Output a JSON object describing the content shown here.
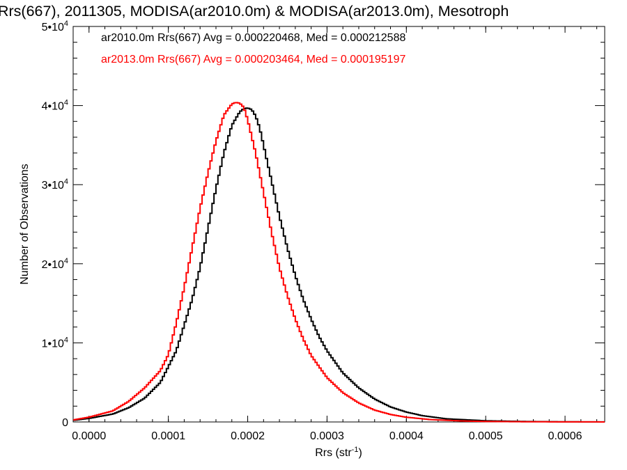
{
  "chart_data": {
    "type": "line",
    "step": true,
    "title": "Rrs(667), 2011305, MODISA(ar2010.0m) & MODISA(ar2013.0m), Mesotroph",
    "xlabel": "Rrs (str",
    "xlabel_sup": "-1",
    "xlabel_close": ")",
    "ylabel": "Number of Observations",
    "xlim": [
      -2e-05,
      0.00065
    ],
    "ylim": [
      0,
      50000
    ],
    "xticks": [
      {
        "v": 0.0,
        "label": "0.0000"
      },
      {
        "v": 0.0001,
        "label": "0.0001"
      },
      {
        "v": 0.0002,
        "label": "0.0002"
      },
      {
        "v": 0.0003,
        "label": "0.0003"
      },
      {
        "v": 0.0004,
        "label": "0.0004"
      },
      {
        "v": 0.0005,
        "label": "0.0005"
      },
      {
        "v": 0.0006,
        "label": "0.0006"
      }
    ],
    "yticks": [
      {
        "v": 0,
        "base": "0",
        "exp": ""
      },
      {
        "v": 10000,
        "base": "1•10",
        "exp": "4"
      },
      {
        "v": 20000,
        "base": "2•10",
        "exp": "4"
      },
      {
        "v": 30000,
        "base": "3•10",
        "exp": "4"
      },
      {
        "v": 40000,
        "base": "4•10",
        "exp": "4"
      },
      {
        "v": 50000,
        "base": "5•10",
        "exp": "4"
      }
    ],
    "grid": false,
    "legend_position": "top-left",
    "annotations": [
      {
        "text": "ar2010.0m Rrs(667) Avg = 0.000220468, Med = 0.000212588",
        "color": "#000000"
      },
      {
        "text": "ar2013.0m Rrs(667) Avg = 0.000203464, Med = 0.000195197",
        "color": "#ff0000"
      }
    ],
    "series": [
      {
        "color": "#000000",
        "x": [
          -2e-05,
          0.0,
          3e-05,
          5e-05,
          7e-05,
          9e-05,
          0.00011,
          0.00013,
          0.00014,
          0.00015,
          0.00016,
          0.00017,
          0.00018,
          0.00019,
          0.000195,
          0.0002,
          0.000205,
          0.00021,
          0.000215,
          0.00022,
          0.00023,
          0.00024,
          0.00025,
          0.00026,
          0.00027,
          0.00028,
          0.00029,
          0.0003,
          0.00032,
          0.00034,
          0.00036,
          0.00038,
          0.0004,
          0.00042,
          0.00045,
          0.0005,
          0.00055,
          0.0006,
          0.00065
        ],
        "y": [
          200,
          450,
          1000,
          1800,
          3000,
          5000,
          9000,
          15500,
          19500,
          24500,
          29500,
          34000,
          37500,
          39200,
          39600,
          39700,
          39500,
          38700,
          37200,
          35000,
          30500,
          26000,
          22000,
          18500,
          15500,
          13000,
          10800,
          9000,
          6200,
          4300,
          2900,
          1900,
          1250,
          800,
          400,
          150,
          60,
          20,
          10
        ]
      },
      {
        "color": "#ff0000",
        "x": [
          -2e-05,
          0.0,
          3e-05,
          5e-05,
          7e-05,
          9e-05,
          0.0001,
          0.00011,
          0.00012,
          0.00013,
          0.00014,
          0.00015,
          0.00016,
          0.00017,
          0.00018,
          0.000185,
          0.00019,
          0.000195,
          0.0002,
          0.00021,
          0.00022,
          0.00023,
          0.00024,
          0.00025,
          0.00026,
          0.00027,
          0.00028,
          0.0003,
          0.00032,
          0.00034,
          0.00036,
          0.00038,
          0.0004,
          0.00043,
          0.00047,
          0.0005,
          0.00055,
          0.0006,
          0.00065
        ],
        "y": [
          250,
          600,
          1400,
          2600,
          4300,
          6500,
          8500,
          12500,
          17000,
          22000,
          27000,
          31500,
          35500,
          38800,
          40200,
          40400,
          40300,
          39800,
          38200,
          34000,
          29000,
          24000,
          19500,
          16000,
          13000,
          10500,
          8400,
          5600,
          3700,
          2400,
          1500,
          950,
          600,
          300,
          130,
          60,
          25,
          10,
          5
        ]
      }
    ]
  }
}
